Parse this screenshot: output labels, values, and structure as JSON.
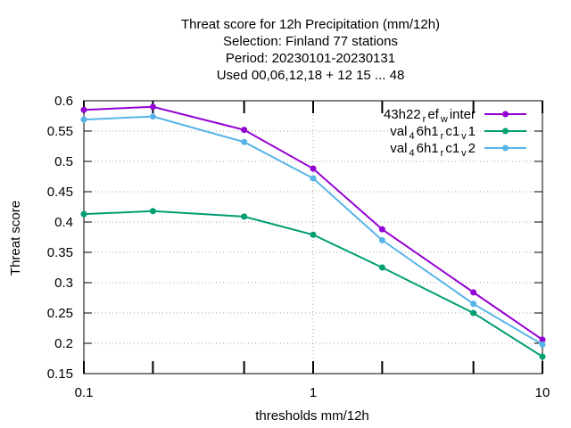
{
  "chart_data": {
    "type": "line",
    "title_lines": [
      "Threat score  for 12h Precipitation (mm/12h)",
      "Selection: Finland     77 stations",
      "Period: 20230101-20230131",
      "Used  00,06,12,18  + 12 15 ... 48"
    ],
    "xlabel": "thresholds mm/12h",
    "ylabel": "Threat score",
    "x_scale": "log",
    "xlim": [
      0.1,
      10
    ],
    "ylim": [
      0.15,
      0.6
    ],
    "grid": true,
    "legend_position": "top-right",
    "x_ticks": [
      {
        "value": 0.1,
        "label": "0.1"
      },
      {
        "value": 1,
        "label": "1"
      },
      {
        "value": 10,
        "label": "10"
      }
    ],
    "y_ticks": [
      {
        "value": 0.15,
        "label": "0.15"
      },
      {
        "value": 0.2,
        "label": "0.2"
      },
      {
        "value": 0.25,
        "label": "0.25"
      },
      {
        "value": 0.3,
        "label": "0.3"
      },
      {
        "value": 0.35,
        "label": "0.35"
      },
      {
        "value": 0.4,
        "label": "0.4"
      },
      {
        "value": 0.45,
        "label": "0.45"
      },
      {
        "value": 0.5,
        "label": "0.5"
      },
      {
        "value": 0.55,
        "label": "0.55"
      },
      {
        "value": 0.6,
        "label": "0.6"
      }
    ],
    "x_minor_ticks": [
      0.2,
      0.5,
      2,
      5
    ],
    "x": [
      0.1,
      0.2,
      0.5,
      1,
      2,
      5,
      10
    ],
    "series": [
      {
        "name_base": "43h22",
        "name_parts": [
          [
            "r",
            "ef"
          ],
          [
            "w",
            "inter"
          ]
        ],
        "color": "#9400d3",
        "values": [
          0.585,
          0.59,
          0.552,
          0.488,
          0.388,
          0.284,
          0.206
        ]
      },
      {
        "name_base": "val",
        "name_parts": [
          [
            "4",
            "6h1"
          ],
          [
            "r",
            "c1"
          ],
          [
            "v",
            "1"
          ]
        ],
        "color": "#009e73",
        "values": [
          0.413,
          0.418,
          0.409,
          0.379,
          0.325,
          0.25,
          0.178
        ]
      },
      {
        "name_base": "val",
        "name_parts": [
          [
            "4",
            "6h1"
          ],
          [
            "r",
            "c1"
          ],
          [
            "v",
            "2"
          ]
        ],
        "color": "#56b4e9",
        "values": [
          0.569,
          0.574,
          0.532,
          0.472,
          0.37,
          0.265,
          0.198
        ]
      }
    ]
  }
}
